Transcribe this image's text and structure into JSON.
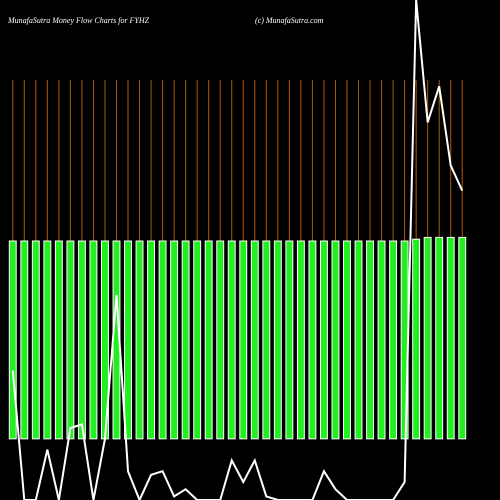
{
  "chart_data": {
    "type": "bar",
    "title": "MunafaSutra  Money Flow  Charts for FYHZ",
    "subtitle": "(c) MunafaSutra.com",
    "categories": [
      null,
      null,
      null,
      null,
      null,
      null,
      null,
      null,
      null,
      null,
      null,
      null,
      null,
      null,
      null,
      null,
      null,
      null,
      null,
      null,
      null,
      null,
      null,
      null,
      null,
      null,
      null,
      null,
      null,
      null,
      null,
      null,
      null,
      null,
      null,
      null,
      null,
      null,
      null,
      null
    ],
    "ylim": [
      -17,
      122
    ],
    "series": [
      {
        "type": "bar",
        "color": "#22ee22",
        "values": [
          55,
          55,
          55,
          55,
          55,
          55,
          55,
          55,
          55,
          55,
          55,
          55,
          55,
          55,
          55,
          55,
          55,
          55,
          55,
          55,
          55,
          55,
          55,
          55,
          55,
          55,
          55,
          55,
          55,
          55,
          55,
          55,
          55,
          55,
          55,
          55.5,
          56,
          56,
          56,
          56
        ]
      },
      {
        "type": "line",
        "color": "#ffffff",
        "values": [
          19,
          -17,
          -17,
          -3,
          -17,
          3,
          4,
          -17,
          0,
          40,
          -9,
          -17,
          -10,
          -9,
          -16,
          -14,
          -17,
          -17,
          -17,
          -6,
          -12,
          -6,
          -16,
          -17,
          -17,
          -17,
          -17,
          -9,
          -14,
          -17,
          -17,
          -17,
          -17,
          -17,
          -12,
          122,
          88,
          98,
          76,
          69
        ]
      }
    ]
  }
}
